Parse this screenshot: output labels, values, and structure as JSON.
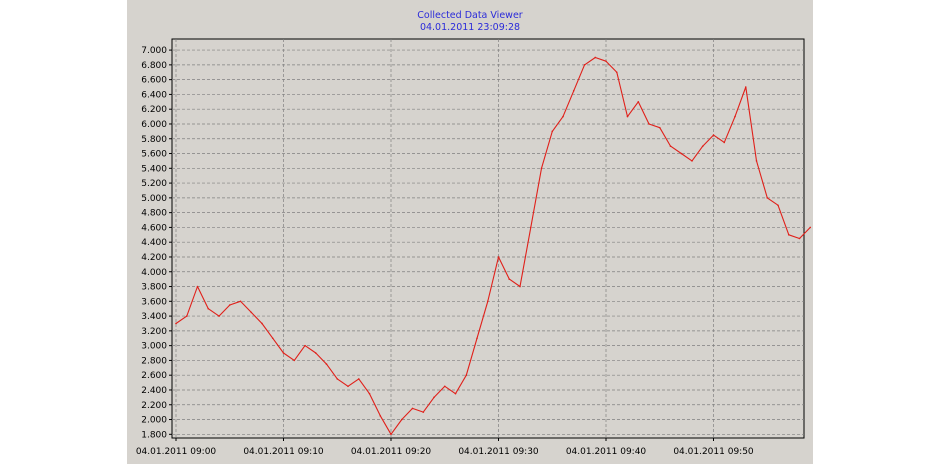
{
  "title": "Collected Data Viewer",
  "subtitle": "04.01.2011 23:09:28",
  "colors": {
    "background": "#d6d3ce",
    "series": "#e0201a",
    "title": "#2b2bd9",
    "grid": "#808080"
  },
  "chart_data": {
    "type": "line",
    "title": "Collected Data Viewer",
    "subtitle": "04.01.2011 23:09:28",
    "xlabel": "",
    "ylabel": "",
    "grid": true,
    "xlim": [
      "04.01.2011 09:00",
      "04.01.2011 09:59"
    ],
    "ylim": [
      1.75,
      7.15
    ],
    "yticks": [
      "1.800",
      "2.000",
      "2.200",
      "2.400",
      "2.600",
      "2.800",
      "3.000",
      "3.200",
      "3.400",
      "3.600",
      "3.800",
      "4.000",
      "4.200",
      "4.400",
      "4.600",
      "4.800",
      "5.000",
      "5.200",
      "5.400",
      "5.600",
      "5.800",
      "6.000",
      "6.200",
      "6.400",
      "6.600",
      "6.800",
      "7.000"
    ],
    "xticks": [
      "04.01.2011 09:00",
      "04.01.2011 09:10",
      "04.01.2011 09:20",
      "04.01.2011 09:30",
      "04.01.2011 09:40",
      "04.01.2011 09:50"
    ],
    "series": [
      {
        "color": "#e0201a",
        "x": [
          "09:00",
          "09:01",
          "09:02",
          "09:03",
          "09:04",
          "09:05",
          "09:06",
          "09:07",
          "09:08",
          "09:09",
          "09:10",
          "09:11",
          "09:12",
          "09:13",
          "09:14",
          "09:15",
          "09:16",
          "09:17",
          "09:18",
          "09:19",
          "09:20",
          "09:21",
          "09:22",
          "09:23",
          "09:24",
          "09:25",
          "09:26",
          "09:27",
          "09:28",
          "09:29",
          "09:30",
          "09:31",
          "09:32",
          "09:33",
          "09:34",
          "09:35",
          "09:36",
          "09:37",
          "09:38",
          "09:39",
          "09:40",
          "09:41",
          "09:42",
          "09:43",
          "09:44",
          "09:45",
          "09:46",
          "09:47",
          "09:48",
          "09:49",
          "09:50",
          "09:51",
          "09:52",
          "09:53",
          "09:54",
          "09:55",
          "09:56",
          "09:57",
          "09:58",
          "09:59"
        ],
        "y": [
          3.3,
          3.4,
          3.8,
          3.5,
          3.4,
          3.55,
          3.6,
          3.45,
          3.3,
          3.1,
          2.9,
          2.8,
          3.0,
          2.9,
          2.75,
          2.55,
          2.45,
          2.55,
          2.35,
          2.05,
          1.8,
          2.0,
          2.15,
          2.1,
          2.3,
          2.45,
          2.35,
          2.6,
          3.1,
          3.6,
          4.2,
          3.9,
          3.8,
          4.6,
          5.4,
          5.9,
          6.1,
          6.45,
          6.8,
          6.9,
          6.85,
          6.7,
          6.1,
          6.3,
          6.0,
          5.95,
          5.7,
          5.6,
          5.5,
          5.7,
          5.85,
          5.75,
          6.1,
          6.5,
          5.5,
          5.0,
          4.9,
          4.5,
          4.45,
          4.6
        ]
      }
    ]
  }
}
